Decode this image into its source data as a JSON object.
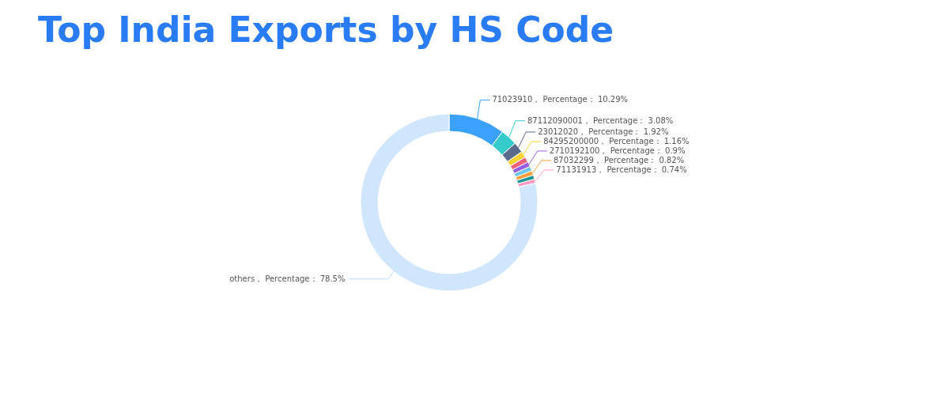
{
  "chart_data": {
    "type": "donut",
    "title": "Top India Exports by HS Code",
    "categories": [
      "71023910",
      "87112090001",
      "23012020",
      "84295200000",
      null,
      "2710192100",
      null,
      "87032299",
      null,
      "71131913",
      "others"
    ],
    "values": [
      10.29,
      3.08,
      1.92,
      1.16,
      0.99,
      0.9,
      0.85,
      0.82,
      0.75,
      0.74,
      78.5
    ],
    "value_labels": [
      "Percentage： 10.29%",
      "Percentage： 3.08%",
      "Percentage： 1.92%",
      "Percentage： 1.16%",
      null,
      "Percentage： 0.9%",
      null,
      "Percentage： 0.82%",
      null,
      "Percentage： 0.74%",
      "Percentage： 78.5%"
    ],
    "colors": [
      "#3aa1ff",
      "#36cbcb",
      "#5b6b8c",
      "#fad337",
      "#f2637b",
      "#975fe4",
      "#6ec6f0",
      "#ff9f42",
      "#1e9493",
      "#ff99c3",
      "#d0e6fc"
    ]
  }
}
